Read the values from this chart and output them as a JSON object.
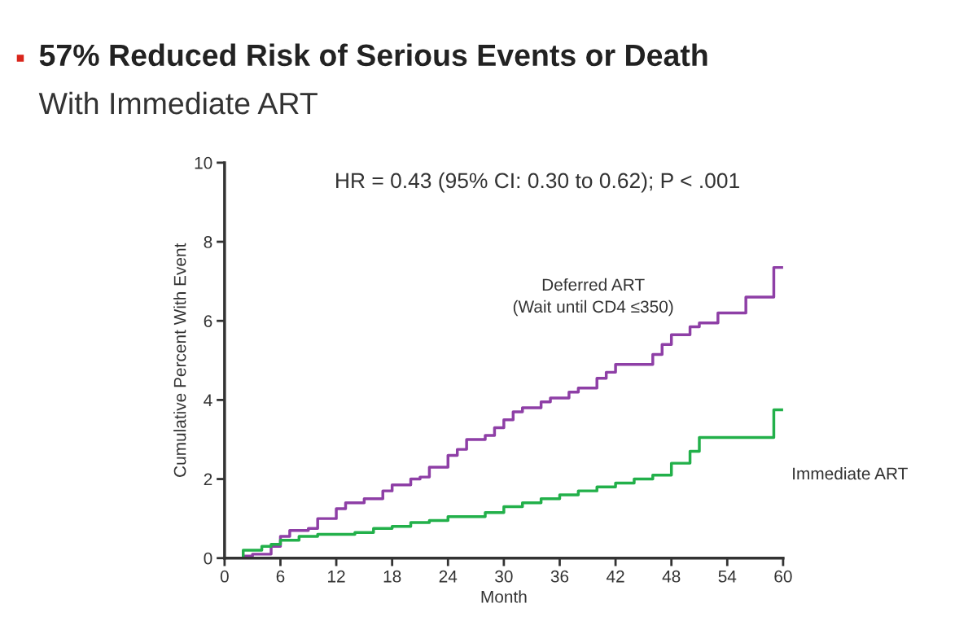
{
  "chart_data": {
    "type": "step",
    "title": "57% Reduced Risk of Serious Events or Death",
    "subtitle": "With Immediate ART",
    "xlabel": "Month",
    "ylabel": "Cumulative Percent With Event",
    "annotations": [
      "HR = 0.43 (95% CI: 0.30 to 0.62); P < .001"
    ],
    "xlim": [
      0,
      60
    ],
    "xticks": [
      0,
      6,
      12,
      18,
      24,
      30,
      36,
      42,
      48,
      54,
      60
    ],
    "ylim": [
      0,
      10
    ],
    "yticks": [
      0,
      2,
      4,
      6,
      8,
      10
    ],
    "grid": false,
    "legend": false,
    "series": [
      {
        "name": "Deferred ART\n(Wait until CD4 ≤350)",
        "color": "#8e3fa6",
        "x": [
          0,
          2,
          3,
          5,
          6,
          7,
          9,
          10,
          12,
          13,
          15,
          17,
          18,
          20,
          21,
          22,
          24,
          25,
          26,
          28,
          29,
          30,
          31,
          32,
          34,
          35,
          37,
          38,
          40,
          41,
          42,
          46,
          47,
          48,
          50,
          51,
          53,
          56,
          59,
          60
        ],
        "values": [
          0,
          0.05,
          0.1,
          0.3,
          0.55,
          0.7,
          0.75,
          1.0,
          1.25,
          1.4,
          1.5,
          1.7,
          1.85,
          2.0,
          2.05,
          2.3,
          2.6,
          2.75,
          3.0,
          3.1,
          3.3,
          3.5,
          3.7,
          3.8,
          3.95,
          4.05,
          4.2,
          4.3,
          4.55,
          4.7,
          4.9,
          5.15,
          5.4,
          5.65,
          5.85,
          5.95,
          6.2,
          6.6,
          7.35,
          7.35
        ]
      },
      {
        "name": "Immediate ART",
        "color": "#22b04a",
        "x": [
          0,
          2,
          4,
          5,
          6,
          8,
          10,
          14,
          16,
          18,
          20,
          22,
          24,
          28,
          30,
          32,
          34,
          36,
          38,
          40,
          42,
          44,
          46,
          48,
          50,
          51,
          59,
          60
        ],
        "values": [
          0,
          0.2,
          0.3,
          0.35,
          0.45,
          0.55,
          0.6,
          0.65,
          0.75,
          0.8,
          0.9,
          0.95,
          1.05,
          1.15,
          1.3,
          1.4,
          1.5,
          1.6,
          1.7,
          1.8,
          1.9,
          2.0,
          2.1,
          2.4,
          2.7,
          3.05,
          3.75,
          3.75
        ]
      }
    ]
  }
}
